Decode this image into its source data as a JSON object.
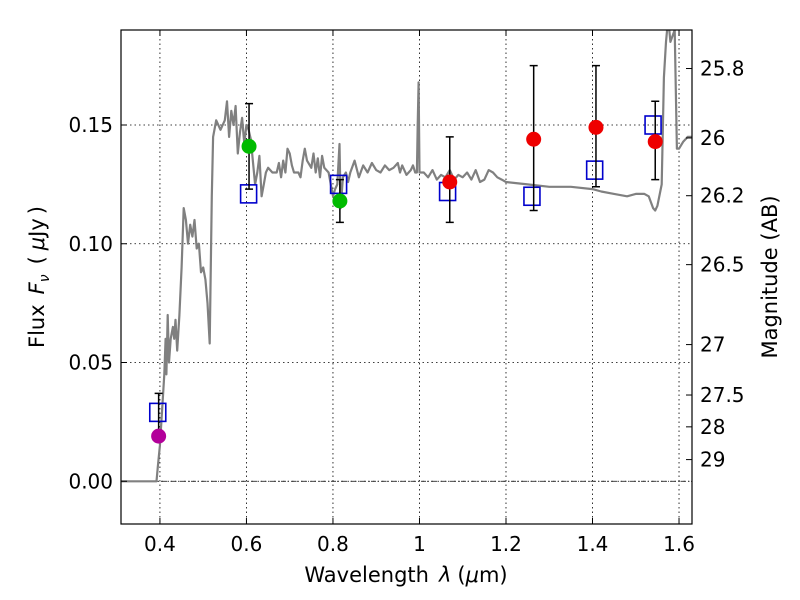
{
  "chart_data": {
    "type": "scatter",
    "xlabel": "Wavelength",
    "xlabel_symbol": "λ",
    "xlabel_unit_open": "(",
    "xlabel_unit_mu": "μ",
    "xlabel_unit_rest": "m)",
    "ylabel": "Flux",
    "ylabel_symbol": "F",
    "ylabel_subscript": "ν",
    "ylabel_unit_open": "(",
    "ylabel_unit_mu": "μ",
    "ylabel_unit_rest": "Jy",
    "ylabel_unit_close": ")",
    "y2label": "Magnitude (AB)",
    "xlim": [
      0.31,
      1.63
    ],
    "ylim": [
      -0.018,
      0.19
    ],
    "x_ticks": [
      {
        "value": 0.4,
        "label": "0.4"
      },
      {
        "value": 0.6,
        "label": "0.6"
      },
      {
        "value": 0.8,
        "label": "0.8"
      },
      {
        "value": 1.0,
        "label": "1"
      },
      {
        "value": 1.2,
        "label": "1.2"
      },
      {
        "value": 1.4,
        "label": "1.4"
      },
      {
        "value": 1.6,
        "label": "1.6"
      }
    ],
    "y_ticks": [
      {
        "value": 0.0,
        "label": "0.00"
      },
      {
        "value": 0.05,
        "label": "0.05"
      },
      {
        "value": 0.1,
        "label": "0.10"
      },
      {
        "value": 0.15,
        "label": "0.15"
      }
    ],
    "magnitude_ticks": [
      {
        "mag": 25.8,
        "label": "25.8"
      },
      {
        "mag": 26.0,
        "label": "26"
      },
      {
        "mag": 26.2,
        "label": "26.2"
      },
      {
        "mag": 26.5,
        "label": "26.5"
      },
      {
        "mag": 27.0,
        "label": "27"
      },
      {
        "mag": 27.5,
        "label": "27.5"
      },
      {
        "mag": 28.0,
        "label": "28"
      },
      {
        "mag": 29.0,
        "label": "29"
      }
    ],
    "grid": true,
    "zero_line": true,
    "colors": {
      "template": "#808080",
      "model": "#0000cc",
      "errorbar": "#000000",
      "grid": "#000000"
    },
    "series": [
      {
        "name": "template spectrum",
        "kind": "line",
        "points": [
          [
            0.31,
            0.0
          ],
          [
            0.392,
            0.0
          ],
          [
            0.395,
            0.006
          ],
          [
            0.4,
            0.015
          ],
          [
            0.405,
            0.03
          ],
          [
            0.41,
            0.045
          ],
          [
            0.413,
            0.06
          ],
          [
            0.415,
            0.045
          ],
          [
            0.418,
            0.07
          ],
          [
            0.421,
            0.05
          ],
          [
            0.425,
            0.06
          ],
          [
            0.43,
            0.065
          ],
          [
            0.433,
            0.06
          ],
          [
            0.436,
            0.068
          ],
          [
            0.44,
            0.055
          ],
          [
            0.445,
            0.07
          ],
          [
            0.45,
            0.09
          ],
          [
            0.455,
            0.115
          ],
          [
            0.46,
            0.11
          ],
          [
            0.465,
            0.1
          ],
          [
            0.47,
            0.108
          ],
          [
            0.475,
            0.103
          ],
          [
            0.48,
            0.11
          ],
          [
            0.485,
            0.098
          ],
          [
            0.49,
            0.1
          ],
          [
            0.495,
            0.088
          ],
          [
            0.5,
            0.09
          ],
          [
            0.505,
            0.085
          ],
          [
            0.51,
            0.075
          ],
          [
            0.515,
            0.058
          ],
          [
            0.52,
            0.12
          ],
          [
            0.523,
            0.145
          ],
          [
            0.53,
            0.152
          ],
          [
            0.54,
            0.148
          ],
          [
            0.55,
            0.152
          ],
          [
            0.555,
            0.16
          ],
          [
            0.56,
            0.145
          ],
          [
            0.565,
            0.156
          ],
          [
            0.57,
            0.15
          ],
          [
            0.575,
            0.158
          ],
          [
            0.58,
            0.138
          ],
          [
            0.585,
            0.147
          ],
          [
            0.59,
            0.153
          ],
          [
            0.595,
            0.142
          ],
          [
            0.6,
            0.15
          ],
          [
            0.605,
            0.148
          ],
          [
            0.61,
            0.144
          ],
          [
            0.62,
            0.125
          ],
          [
            0.625,
            0.13
          ],
          [
            0.63,
            0.137
          ],
          [
            0.635,
            0.12
          ],
          [
            0.64,
            0.125
          ],
          [
            0.645,
            0.13
          ],
          [
            0.65,
            0.132
          ],
          [
            0.66,
            0.13
          ],
          [
            0.67,
            0.13
          ],
          [
            0.675,
            0.134
          ],
          [
            0.68,
            0.128
          ],
          [
            0.685,
            0.135
          ],
          [
            0.69,
            0.13
          ],
          [
            0.695,
            0.14
          ],
          [
            0.7,
            0.138
          ],
          [
            0.705,
            0.133
          ],
          [
            0.71,
            0.13
          ],
          [
            0.72,
            0.13
          ],
          [
            0.725,
            0.128
          ],
          [
            0.73,
            0.135
          ],
          [
            0.735,
            0.14
          ],
          [
            0.74,
            0.135
          ],
          [
            0.75,
            0.132
          ],
          [
            0.755,
            0.138
          ],
          [
            0.76,
            0.13
          ],
          [
            0.765,
            0.136
          ],
          [
            0.77,
            0.128
          ],
          [
            0.775,
            0.137
          ],
          [
            0.78,
            0.132
          ],
          [
            0.79,
            0.13
          ],
          [
            0.8,
            0.12
          ],
          [
            0.805,
            0.123
          ],
          [
            0.81,
            0.125
          ],
          [
            0.815,
            0.142
          ],
          [
            0.818,
            0.115
          ],
          [
            0.823,
            0.128
          ],
          [
            0.83,
            0.13
          ],
          [
            0.835,
            0.126
          ],
          [
            0.84,
            0.13
          ],
          [
            0.85,
            0.135
          ],
          [
            0.86,
            0.128
          ],
          [
            0.87,
            0.133
          ],
          [
            0.88,
            0.13
          ],
          [
            0.89,
            0.134
          ],
          [
            0.9,
            0.131
          ],
          [
            0.91,
            0.13
          ],
          [
            0.92,
            0.133
          ],
          [
            0.93,
            0.131
          ],
          [
            0.94,
            0.132
          ],
          [
            0.95,
            0.134
          ],
          [
            0.955,
            0.13
          ],
          [
            0.96,
            0.133
          ],
          [
            0.97,
            0.129
          ],
          [
            0.98,
            0.131
          ],
          [
            0.985,
            0.133
          ],
          [
            0.99,
            0.13
          ],
          [
            0.994,
            0.13
          ],
          [
            0.996,
            0.15
          ],
          [
            0.998,
            0.168
          ],
          [
            1.0,
            0.13
          ],
          [
            1.01,
            0.13
          ],
          [
            1.02,
            0.128
          ],
          [
            1.03,
            0.131
          ],
          [
            1.04,
            0.127
          ],
          [
            1.05,
            0.129
          ],
          [
            1.06,
            0.128
          ],
          [
            1.07,
            0.131
          ],
          [
            1.08,
            0.127
          ],
          [
            1.09,
            0.129
          ],
          [
            1.1,
            0.128
          ],
          [
            1.11,
            0.13
          ],
          [
            1.12,
            0.127
          ],
          [
            1.13,
            0.131
          ],
          [
            1.14,
            0.126
          ],
          [
            1.15,
            0.127
          ],
          [
            1.16,
            0.131
          ],
          [
            1.17,
            0.13
          ],
          [
            1.18,
            0.128
          ],
          [
            1.19,
            0.127
          ],
          [
            1.2,
            0.126
          ],
          [
            1.25,
            0.125
          ],
          [
            1.3,
            0.124
          ],
          [
            1.35,
            0.124
          ],
          [
            1.4,
            0.123
          ],
          [
            1.42,
            0.122
          ],
          [
            1.45,
            0.121
          ],
          [
            1.48,
            0.12
          ],
          [
            1.5,
            0.121
          ],
          [
            1.52,
            0.121
          ],
          [
            1.53,
            0.12
          ],
          [
            1.54,
            0.115
          ],
          [
            1.545,
            0.114
          ],
          [
            1.55,
            0.116
          ],
          [
            1.56,
            0.125
          ],
          [
            1.565,
            0.17
          ],
          [
            1.57,
            0.185
          ],
          [
            1.575,
            0.195
          ],
          [
            1.58,
            0.185
          ],
          [
            1.59,
            0.19
          ],
          [
            1.595,
            0.14
          ],
          [
            1.6,
            0.14
          ],
          [
            1.61,
            0.143
          ],
          [
            1.62,
            0.145
          ],
          [
            1.63,
            0.145
          ]
        ]
      },
      {
        "name": "model photometry",
        "kind": "open-square",
        "points": [
          [
            0.395,
            0.029
          ],
          [
            0.605,
            0.121
          ],
          [
            0.813,
            0.125
          ],
          [
            1.065,
            0.122
          ],
          [
            1.26,
            0.12
          ],
          [
            1.405,
            0.131
          ],
          [
            1.54,
            0.15
          ]
        ]
      },
      {
        "name": "observed photometry",
        "kind": "filled-circle",
        "points": [
          {
            "x": 0.397,
            "y": 0.019,
            "yerr_low": 0.019,
            "yerr_high": 0.037,
            "color": "#b3009a"
          },
          {
            "x": 0.606,
            "y": 0.141,
            "yerr_low": 0.123,
            "yerr_high": 0.159,
            "color": "#00bb00"
          },
          {
            "x": 0.816,
            "y": 0.118,
            "yerr_low": 0.109,
            "yerr_high": 0.127,
            "color": "#00bb00"
          },
          {
            "x": 1.07,
            "y": 0.126,
            "yerr_low": 0.109,
            "yerr_high": 0.145,
            "color": "#ee0000"
          },
          {
            "x": 1.264,
            "y": 0.144,
            "yerr_low": 0.114,
            "yerr_high": 0.175,
            "color": "#ee0000"
          },
          {
            "x": 1.408,
            "y": 0.149,
            "yerr_low": 0.124,
            "yerr_high": 0.175,
            "color": "#ee0000"
          },
          {
            "x": 1.545,
            "y": 0.143,
            "yerr_low": 0.127,
            "yerr_high": 0.16,
            "color": "#ee0000"
          }
        ]
      }
    ]
  }
}
